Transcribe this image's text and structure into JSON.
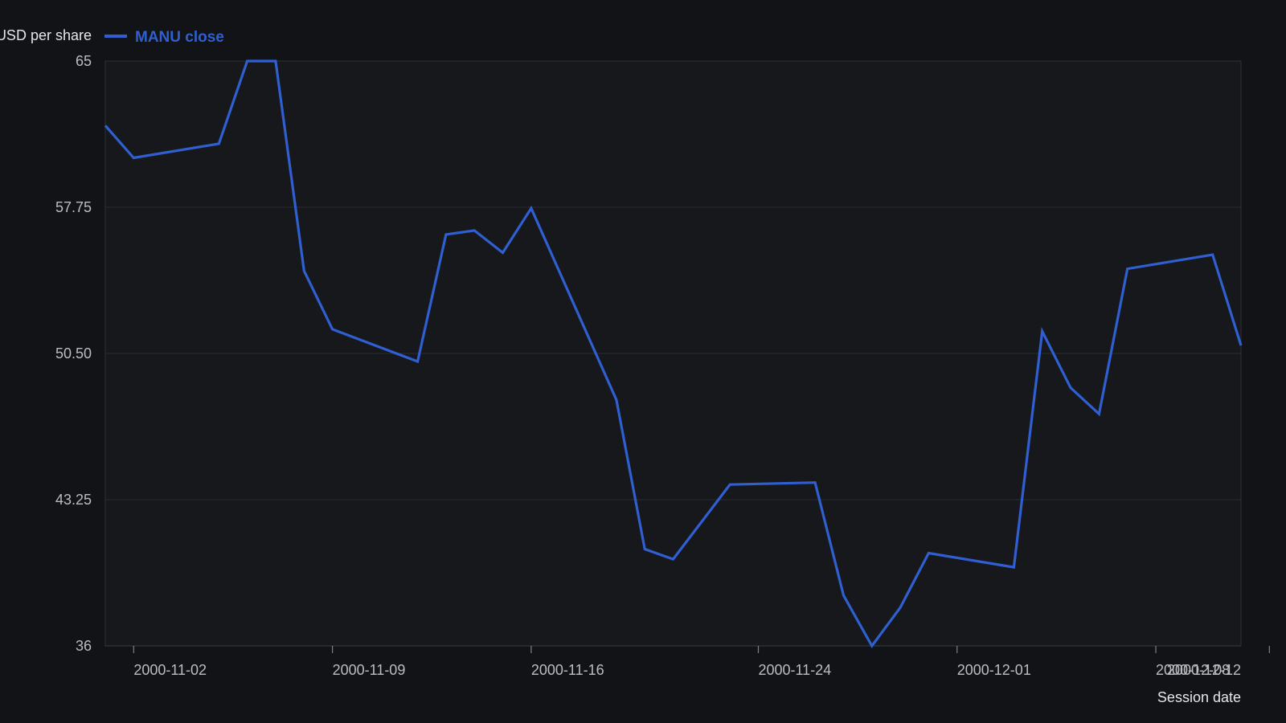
{
  "chart_data": {
    "type": "line",
    "title": "",
    "xlabel": "Session date",
    "ylabel": "USD per share",
    "ylim": [
      36,
      65
    ],
    "yticks": [
      "36",
      "43.25",
      "50.50",
      "57.75",
      "65"
    ],
    "xticks": [
      "2000-11-02",
      "2000-11-09",
      "2000-11-16",
      "2000-11-24",
      "2000-12-01",
      "2000-12-08",
      "2000-12-12"
    ],
    "grid": true,
    "legend_position": "top-left",
    "series": [
      {
        "name": "MANU close",
        "color": "#2f5fd0",
        "points": [
          {
            "x": "2000-11-01",
            "y": 61.8
          },
          {
            "x": "2000-11-02",
            "y": 60.2
          },
          {
            "x": "2000-11-05",
            "y": 60.9
          },
          {
            "x": "2000-11-06",
            "y": 65.0
          },
          {
            "x": "2000-11-07",
            "y": 65.0
          },
          {
            "x": "2000-11-08",
            "y": 54.6
          },
          {
            "x": "2000-11-09",
            "y": 51.7
          },
          {
            "x": "2000-11-12",
            "y": 50.1
          },
          {
            "x": "2000-11-13",
            "y": 56.4
          },
          {
            "x": "2000-11-14",
            "y": 56.6
          },
          {
            "x": "2000-11-15",
            "y": 55.5
          },
          {
            "x": "2000-11-16",
            "y": 57.7
          },
          {
            "x": "2000-11-19",
            "y": 48.2
          },
          {
            "x": "2000-11-20",
            "y": 40.8
          },
          {
            "x": "2000-11-21",
            "y": 40.3
          },
          {
            "x": "2000-11-23",
            "y": 44.0
          },
          {
            "x": "2000-11-26",
            "y": 44.1
          },
          {
            "x": "2000-11-27",
            "y": 38.5
          },
          {
            "x": "2000-11-28",
            "y": 36.0
          },
          {
            "x": "2000-11-29",
            "y": 37.9
          },
          {
            "x": "2000-11-30",
            "y": 40.6
          },
          {
            "x": "2000-12-03",
            "y": 39.9
          },
          {
            "x": "2000-12-04",
            "y": 51.6
          },
          {
            "x": "2000-12-05",
            "y": 48.8
          },
          {
            "x": "2000-12-06",
            "y": 47.5
          },
          {
            "x": "2000-12-07",
            "y": 54.7
          },
          {
            "x": "2000-12-10",
            "y": 55.4
          },
          {
            "x": "2000-12-11",
            "y": 50.9
          }
        ]
      }
    ]
  }
}
